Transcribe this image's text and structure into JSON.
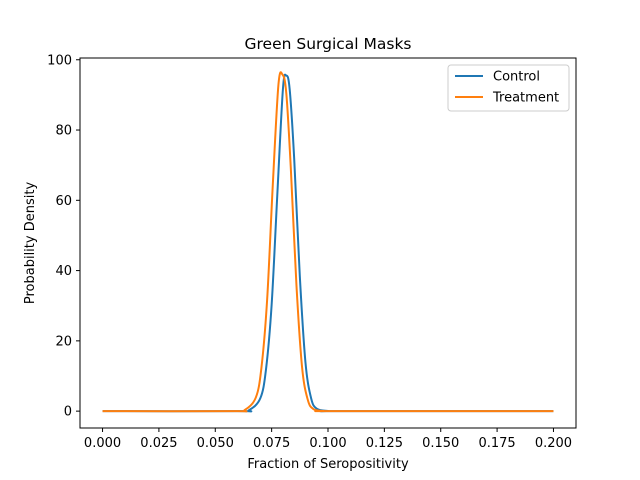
{
  "chart_data": {
    "type": "line",
    "title": "Green Surgical Masks",
    "xlabel": "Fraction of Seropositivity",
    "ylabel": "Probability Density",
    "xlim": [
      -0.01,
      0.21
    ],
    "ylim": [
      -4.8,
      100.5
    ],
    "xticks": [
      "0.000",
      "0.025",
      "0.050",
      "0.075",
      "0.100",
      "0.125",
      "0.150",
      "0.175",
      "0.200"
    ],
    "xtick_values": [
      0.0,
      0.025,
      0.05,
      0.075,
      0.1,
      0.125,
      0.15,
      0.175,
      0.2
    ],
    "yticks": [
      "0",
      "20",
      "40",
      "60",
      "80",
      "100"
    ],
    "ytick_values": [
      0,
      20,
      40,
      60,
      80,
      100
    ],
    "grid": false,
    "legend_position": "top-right",
    "series": [
      {
        "name": "Control",
        "color": "#1f77b4",
        "x": [
          0.0,
          0.06,
          0.065,
          0.07,
          0.0725,
          0.075,
          0.0775,
          0.08,
          0.0815,
          0.083,
          0.085,
          0.0875,
          0.09,
          0.0925,
          0.095,
          0.1,
          0.105,
          0.2
        ],
        "y": [
          0,
          0,
          0.3,
          3.7,
          11.9,
          30.3,
          61.4,
          91.6,
          95.5,
          91.6,
          71.9,
          38.4,
          13.9,
          3.7,
          0.7,
          0.05,
          0,
          0
        ]
      },
      {
        "name": "Treatment",
        "color": "#ff7f0e",
        "x": [
          0.0,
          0.058,
          0.063,
          0.068,
          0.0705,
          0.073,
          0.0755,
          0.078,
          0.0798,
          0.0815,
          0.0835,
          0.086,
          0.0885,
          0.091,
          0.0935,
          0.098,
          0.103,
          0.2
        ],
        "y": [
          0,
          0,
          0.3,
          3.9,
          12.5,
          31.7,
          64.2,
          92.8,
          95.8,
          90.5,
          69.2,
          35.9,
          12.5,
          3.3,
          0.6,
          0.04,
          0,
          0
        ]
      }
    ]
  }
}
